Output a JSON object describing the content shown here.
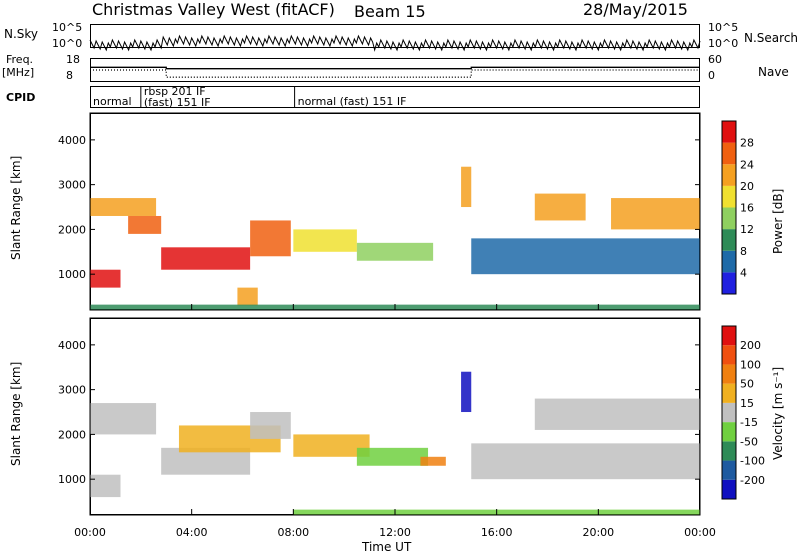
{
  "header": {
    "title": "Christmas Valley West (fitACF)",
    "beam": "Beam 15",
    "date": "28/May/2015"
  },
  "strips": {
    "nsky_label": "N.Sky",
    "nsearch_label": "N.Search",
    "nsky_ticks": [
      "10^5",
      "10^0"
    ],
    "nsearch_ticks": [
      "10^5",
      "10^0"
    ],
    "freq_label": "Freq.",
    "freq_unit": "[MHz]",
    "freq_ticks": [
      "18",
      "8"
    ],
    "nave_label": "Nave",
    "nave_ticks": [
      "60",
      "0"
    ],
    "cpid_label": "CPID",
    "cpid_segments": [
      {
        "label": "normal",
        "start": 0,
        "end": 2
      },
      {
        "label": "rbsp 201 IF",
        "start": 2,
        "end": 8.05,
        "sub": "(fast) 151 IF"
      },
      {
        "label": "normal (fast) 151 IF",
        "start": 8.05,
        "end": 24
      }
    ],
    "freq_steps": [
      {
        "t": 0,
        "v": 11
      },
      {
        "t": 3,
        "v": 10
      },
      {
        "t": 15,
        "v": 11
      },
      {
        "t": 24,
        "v": 11
      }
    ],
    "nave_steps": [
      {
        "t": 0,
        "v": 30
      },
      {
        "t": 3,
        "v": 12
      },
      {
        "t": 15,
        "v": 30
      },
      {
        "t": 24,
        "v": 30
      }
    ]
  },
  "chart_data": [
    {
      "type": "heatmap",
      "name": "power",
      "ylabel": "Slant Range [km]",
      "xlabel": "Time UT",
      "x_ticks": [
        "00:00",
        "04:00",
        "08:00",
        "12:00",
        "16:00",
        "20:00",
        "00:00"
      ],
      "y_ticks": [
        1000,
        2000,
        3000,
        4000
      ],
      "xlim": [
        0,
        24
      ],
      "ylim": [
        200,
        4600
      ],
      "colorbar_label": "Power [dB]",
      "colorbar_ticks": [
        "4",
        "8",
        "12",
        "16",
        "20",
        "24",
        "28"
      ],
      "colorbar_colors": [
        "#2020e0",
        "#1e6aa8",
        "#2e8b57",
        "#8fd060",
        "#f0e030",
        "#f5a020",
        "#f06010",
        "#e01010"
      ],
      "echo_bands": [
        {
          "t0": 0,
          "t1": 1.2,
          "r0": 700,
          "r1": 1100,
          "level": 7
        },
        {
          "t0": 0,
          "t1": 2.6,
          "r0": 2300,
          "r1": 2700,
          "level": 5
        },
        {
          "t0": 1.5,
          "t1": 2.8,
          "r0": 1900,
          "r1": 2300,
          "level": 6
        },
        {
          "t0": 2.8,
          "t1": 6.3,
          "r0": 1100,
          "r1": 1600,
          "level": 7
        },
        {
          "t0": 6.3,
          "t1": 7.9,
          "r0": 1400,
          "r1": 2200,
          "level": 6
        },
        {
          "t0": 5.8,
          "t1": 6.6,
          "r0": 300,
          "r1": 700,
          "level": 5
        },
        {
          "t0": 8.0,
          "t1": 10.5,
          "r0": 1500,
          "r1": 2000,
          "level": 4
        },
        {
          "t0": 10.5,
          "t1": 13.5,
          "r0": 1300,
          "r1": 1700,
          "level": 3
        },
        {
          "t0": 14.6,
          "t1": 15.0,
          "r0": 2500,
          "r1": 3400,
          "level": 5
        },
        {
          "t0": 15.0,
          "t1": 24,
          "r0": 1000,
          "r1": 1800,
          "level": 1
        },
        {
          "t0": 17.5,
          "t1": 19.5,
          "r0": 2200,
          "r1": 2800,
          "level": 5
        },
        {
          "t0": 20.5,
          "t1": 24,
          "r0": 2000,
          "r1": 2700,
          "level": 5
        },
        {
          "t0": 0,
          "t1": 24,
          "r0": 200,
          "r1": 320,
          "level": 2
        }
      ]
    },
    {
      "type": "heatmap",
      "name": "velocity",
      "ylabel": "Slant Range [km]",
      "xlabel": "Time UT",
      "x_ticks": [
        "00:00",
        "04:00",
        "08:00",
        "12:00",
        "16:00",
        "20:00",
        "00:00"
      ],
      "y_ticks": [
        1000,
        2000,
        3000,
        4000
      ],
      "xlim": [
        0,
        24
      ],
      "ylim": [
        200,
        4600
      ],
      "colorbar_label": "Velocity [m s⁻¹]",
      "colorbar_ticks": [
        "200",
        "100",
        "50",
        "15",
        "-15",
        "-50",
        "-100",
        "-200"
      ],
      "colorbar_colors": [
        "#1010c0",
        "#1e5aa0",
        "#2e8b57",
        "#70d040",
        "#c0c0c0",
        "#f0b020",
        "#f08010",
        "#f05010",
        "#e01010"
      ],
      "echo_bands": [
        {
          "t0": 0,
          "t1": 2.6,
          "r0": 2000,
          "r1": 2700,
          "level": 4
        },
        {
          "t0": 0,
          "t1": 1.2,
          "r0": 600,
          "r1": 1100,
          "level": 4
        },
        {
          "t0": 2.8,
          "t1": 6.3,
          "r0": 1100,
          "r1": 1700,
          "level": 4
        },
        {
          "t0": 3.5,
          "t1": 7.5,
          "r0": 1600,
          "r1": 2200,
          "level": 5
        },
        {
          "t0": 6.3,
          "t1": 7.9,
          "r0": 1900,
          "r1": 2500,
          "level": 4
        },
        {
          "t0": 8.0,
          "t1": 11.0,
          "r0": 1500,
          "r1": 2000,
          "level": 5
        },
        {
          "t0": 10.5,
          "t1": 13.3,
          "r0": 1300,
          "r1": 1700,
          "level": 3
        },
        {
          "t0": 13.0,
          "t1": 14.0,
          "r0": 1300,
          "r1": 1500,
          "level": 6
        },
        {
          "t0": 14.6,
          "t1": 15.0,
          "r0": 2500,
          "r1": 3400,
          "level": 0
        },
        {
          "t0": 15.0,
          "t1": 24,
          "r0": 1000,
          "r1": 1800,
          "level": 4
        },
        {
          "t0": 17.5,
          "t1": 24,
          "r0": 2100,
          "r1": 2800,
          "level": 4
        },
        {
          "t0": 8.0,
          "t1": 24,
          "r0": 200,
          "r1": 320,
          "level": 3
        }
      ]
    }
  ]
}
